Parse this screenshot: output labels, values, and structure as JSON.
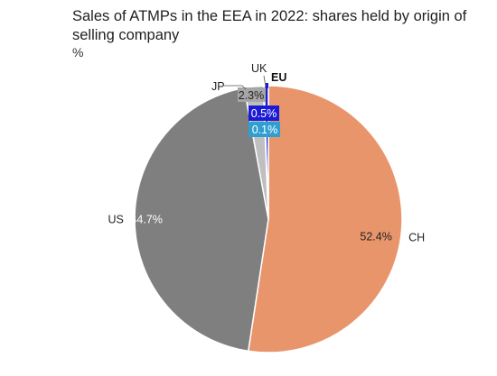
{
  "title": "Sales of ATMPs in the EEA in 2022: shares held by origin of selling company",
  "unit": "%",
  "chart_data": {
    "type": "pie",
    "title": "Sales of ATMPs in the EEA in 2022: shares held by origin of selling company",
    "unit": "%",
    "slices": [
      {
        "name": "CH",
        "value": 52.4,
        "value_label": "52.4%",
        "color": "#e8956c"
      },
      {
        "name": "US",
        "value": 44.7,
        "value_label": "44.7%",
        "color": "#7f7f7f"
      },
      {
        "name": "JP",
        "value": 2.3,
        "value_label": "2.3%",
        "color": "#bfbfbf"
      },
      {
        "name": "UK",
        "value": 0.1,
        "value_label": "0.1%",
        "color": "#2f9fd0"
      },
      {
        "name": "EU",
        "value": 0.5,
        "value_label": "0.5%",
        "color": "#1b1bd6"
      }
    ]
  }
}
